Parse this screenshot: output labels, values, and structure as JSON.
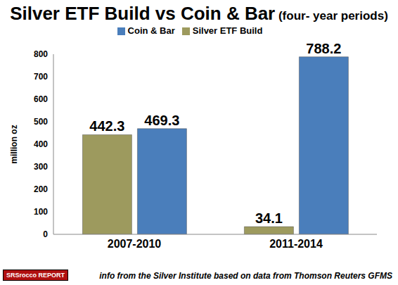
{
  "chart_data": {
    "type": "bar",
    "title": "Silver ETF Build vs Coin & Bar (four- year periods)",
    "y_label": "million oz",
    "categories": [
      "2007-2010",
      "2011-2014"
    ],
    "series": [
      {
        "name": "Silver ETF Build",
        "color": "#9d9a5e",
        "values": [
          442.3,
          34.1
        ]
      },
      {
        "name": "Coin & Bar",
        "color": "#4a7ebb",
        "values": [
          469.3,
          788.2
        ]
      }
    ],
    "ylim": [
      0,
      800
    ],
    "yticks": [
      0,
      100,
      200,
      300,
      400,
      500,
      600,
      700,
      800
    ],
    "grid": false,
    "legend": "top",
    "data_labels": true,
    "annotations": [
      "info from the Silver Institute based on data from Thomson Reuters GFMS",
      "SRSrocco REPORT"
    ]
  }
}
